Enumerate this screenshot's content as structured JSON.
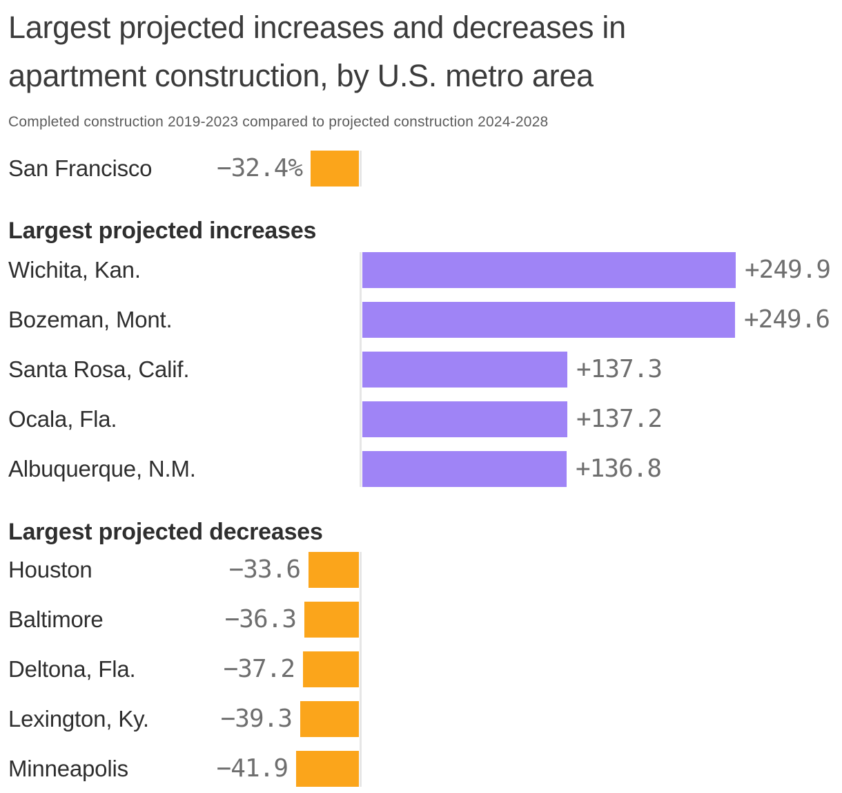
{
  "header": {
    "title": "Largest projected increases and decreases in apartment construction, by U.S. metro area",
    "subtitle": "Completed construction 2019-2023 compared to projected construction 2024-2028"
  },
  "colors": {
    "increase_bar": "#9f84f6",
    "decrease_bar": "#fba51b",
    "axis_line": "#e6e6e6",
    "title_text": "#3b3b3b",
    "subtitle_text": "#5c5c5c",
    "label_text": "#2e2e2e",
    "value_text": "#6e6e6e"
  },
  "chart_data": [
    {
      "type": "bar",
      "name": "san-francisco-highlight",
      "heading": "",
      "categories": [
        "San Francisco"
      ],
      "values": [
        -32.4
      ],
      "value_labels": [
        "−32.4%"
      ],
      "bar_color_key": "decrease_bar"
    },
    {
      "type": "bar",
      "name": "largest-projected-increases",
      "heading": "Largest projected increases",
      "categories": [
        "Wichita, Kan.",
        "Bozeman, Mont.",
        "Santa Rosa, Calif.",
        "Ocala, Fla.",
        "Albuquerque, N.M."
      ],
      "values": [
        249.9,
        249.6,
        137.3,
        137.2,
        136.8
      ],
      "value_labels": [
        "+249.9",
        "+249.6",
        "+137.3",
        "+137.2",
        "+136.8"
      ],
      "bar_color_key": "increase_bar"
    },
    {
      "type": "bar",
      "name": "largest-projected-decreases",
      "heading": "Largest projected decreases",
      "categories": [
        "Houston",
        "Baltimore",
        "Deltona, Fla.",
        "Lexington, Ky.",
        "Minneapolis"
      ],
      "values": [
        -33.6,
        -36.3,
        -37.2,
        -39.3,
        -41.9
      ],
      "value_labels": [
        "−33.6",
        "−36.3",
        "−37.2",
        "−39.3",
        "−41.9"
      ],
      "bar_color_key": "decrease_bar"
    }
  ]
}
